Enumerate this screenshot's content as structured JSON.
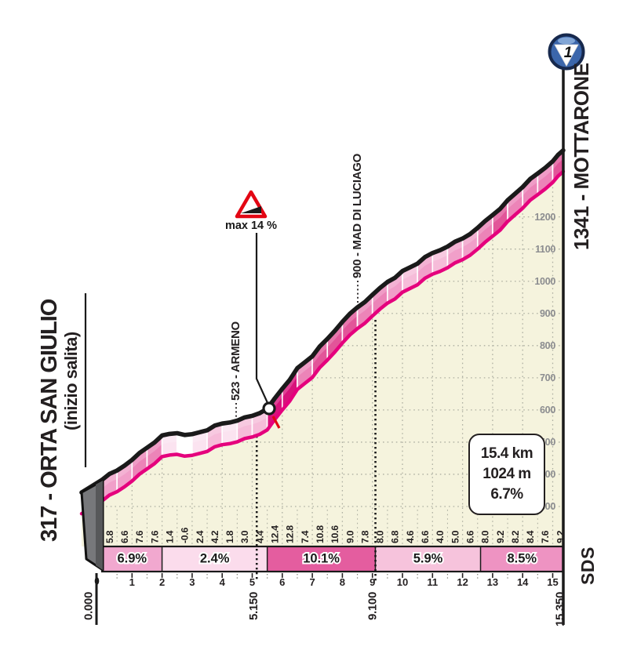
{
  "header": {
    "category_badge": "1"
  },
  "start": {
    "label": "317 - ORTA SAN GIULIO",
    "sublabel": "(inizio salita)"
  },
  "finish": {
    "label": "1341 - MOTTARONE"
  },
  "stats_box": {
    "distance": "15.4 km",
    "elevation_gain": "1024 m",
    "avg_gradient": "6.7%"
  },
  "branding": {
    "logo": "SDS"
  },
  "chart_data": {
    "type": "area",
    "x_unit": "km",
    "y_unit": "m",
    "xlim": [
      0,
      15.35
    ],
    "ylim": [
      300,
      1341
    ],
    "grid": true,
    "elevation_ticks": [
      300,
      400,
      500,
      600,
      700,
      800,
      900,
      1000,
      1100,
      1200
    ],
    "km_ticks": [
      1,
      2,
      3,
      4,
      5,
      6,
      7,
      8,
      9,
      10,
      11,
      12,
      13,
      14,
      15
    ],
    "distance_markers": [
      {
        "km": 0,
        "label": "0.000"
      },
      {
        "km": 5.15,
        "label": "5.150"
      },
      {
        "km": 9.1,
        "label": "9.100"
      },
      {
        "km": 15.35,
        "label": "15.350"
      }
    ],
    "profile": {
      "start_elevation_m": 317,
      "finish_elevation_m": 1341,
      "step_km": 0.5,
      "elevations_m": [
        317,
        346,
        379,
        417,
        455,
        462,
        459,
        471,
        492,
        501,
        516,
        538,
        600,
        664,
        701,
        755,
        808,
        853,
        892,
        932,
        966,
        989,
        1022,
        1042,
        1067,
        1100,
        1140,
        1186,
        1227,
        1269,
        1307,
        1341
      ],
      "half_km_gradients_pct": [
        "5.8",
        "6.6",
        "7.6",
        "7.6",
        "1.4",
        "-0.6",
        "2.4",
        "4.2",
        "1.8",
        "3.0",
        "4.4",
        "12.4",
        "12.8",
        "7.4",
        "10.8",
        "10.6",
        "9.0",
        "7.8",
        "8.0",
        "6.8",
        "4.6",
        "6.6",
        "4.0",
        "5.0",
        "6.6",
        "8.0",
        "9.2",
        "8.2",
        "8.4",
        "7.6",
        "9.2"
      ]
    },
    "gradient_segments": [
      {
        "from_km": 0,
        "to_km": 2.0,
        "label": "6.9%",
        "color": "#f1a8cf"
      },
      {
        "from_km": 2.0,
        "to_km": 5.5,
        "label": "2.4%",
        "color": "#fbdcec"
      },
      {
        "from_km": 5.5,
        "to_km": 9.1,
        "label": "10.1%",
        "color": "#e45d9f"
      },
      {
        "from_km": 9.1,
        "to_km": 12.6,
        "label": "5.9%",
        "color": "#f6c3dc"
      },
      {
        "from_km": 12.6,
        "to_km": 15.35,
        "label": "8.5%",
        "color": "#ee93c2"
      }
    ],
    "waypoints": [
      {
        "km": 5.15,
        "elevation_m": 523,
        "label": "523 - ARMENO"
      },
      {
        "km": 9.1,
        "elevation_m": 900,
        "label": "900 - MAD DI LUCIAGO"
      }
    ],
    "max_gradient": {
      "label": "max 14 %",
      "km": 5.55
    }
  },
  "colors": {
    "profile_line": "#e5007d",
    "road_line": "#1a1a1a",
    "plot_fill": "#f5f3dd",
    "grid": "#aeb0a2",
    "axis_text": "#231f20",
    "elevation_text": "#8c8d90",
    "warning_red": "#e30613",
    "badge_blue": "#3b66ab",
    "badge_dark": "#17294d",
    "block_gray": "#77787b",
    "ribbon_scale": [
      {
        "max_pct": 0,
        "color": "#ffffff"
      },
      {
        "max_pct": 3,
        "color": "#fbe3f0"
      },
      {
        "max_pct": 5,
        "color": "#f6bcd9"
      },
      {
        "max_pct": 7,
        "color": "#f19fc9"
      },
      {
        "max_pct": 9,
        "color": "#ec84b8"
      },
      {
        "max_pct": 11,
        "color": "#e25599"
      },
      {
        "max_pct": 99,
        "color": "#d8137b"
      }
    ]
  }
}
